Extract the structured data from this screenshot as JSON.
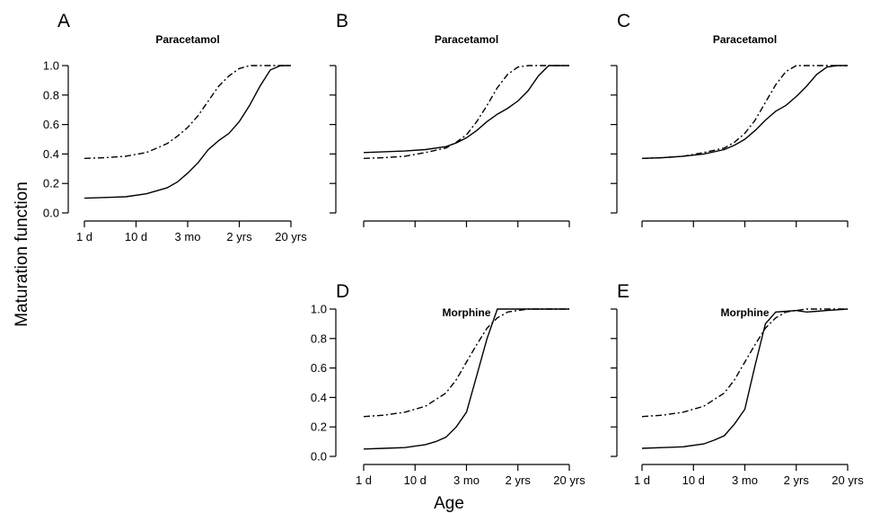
{
  "figure": {
    "ylabel": "Maturation function",
    "xlabel": "Age"
  },
  "chart_data": [
    {
      "type": "line",
      "panel": "A",
      "title": "Paracetamol",
      "x_tick_labels": [
        "1 d",
        "10 d",
        "3 mo",
        "2 yrs",
        "20 yrs"
      ],
      "x_scale": "log",
      "y_ticks": [
        "0.0",
        "0.2",
        "0.4",
        "0.6",
        "0.8",
        "1.0"
      ],
      "ylim": [
        0,
        1
      ],
      "series": [
        {
          "style": "solid",
          "x": [
            0,
            0.5,
            1,
            1.5,
            2,
            2.25,
            2.5,
            2.75,
            3,
            3.25,
            3.5,
            3.75,
            4,
            4.25,
            4.5,
            4.75,
            5
          ],
          "y": [
            0.1,
            0.105,
            0.11,
            0.13,
            0.17,
            0.21,
            0.27,
            0.34,
            0.43,
            0.49,
            0.54,
            0.62,
            0.73,
            0.86,
            0.97,
            1.0,
            1.0
          ]
        },
        {
          "style": "dashdot",
          "x": [
            0,
            0.5,
            1,
            1.5,
            2,
            2.25,
            2.5,
            2.75,
            3,
            3.25,
            3.5,
            3.75,
            4,
            4.25,
            4.5,
            5
          ],
          "y": [
            0.37,
            0.375,
            0.385,
            0.41,
            0.47,
            0.52,
            0.58,
            0.66,
            0.76,
            0.86,
            0.93,
            0.98,
            1.0,
            1.0,
            1.0,
            1.0
          ]
        }
      ]
    },
    {
      "type": "line",
      "panel": "B",
      "title": "Paracetamol",
      "x_tick_labels": [],
      "x_scale": "log",
      "y_ticks": [],
      "ylim": [
        0,
        1
      ],
      "series": [
        {
          "style": "solid",
          "x": [
            0,
            0.5,
            1,
            1.5,
            2,
            2.25,
            2.5,
            2.75,
            3,
            3.25,
            3.5,
            3.75,
            4,
            4.25,
            4.5,
            4.75,
            5
          ],
          "y": [
            0.41,
            0.415,
            0.42,
            0.43,
            0.45,
            0.475,
            0.51,
            0.56,
            0.62,
            0.67,
            0.71,
            0.76,
            0.83,
            0.93,
            1.0,
            1.0,
            1.0
          ]
        },
        {
          "style": "dashdot",
          "x": [
            0,
            0.5,
            1,
            1.5,
            2,
            2.25,
            2.5,
            2.75,
            3,
            3.25,
            3.5,
            3.75,
            4,
            4.25,
            4.5,
            5
          ],
          "y": [
            0.37,
            0.375,
            0.385,
            0.41,
            0.44,
            0.48,
            0.53,
            0.62,
            0.73,
            0.85,
            0.94,
            0.99,
            1.0,
            1.0,
            1.0,
            1.0
          ]
        }
      ]
    },
    {
      "type": "line",
      "panel": "C",
      "title": "Paracetamol",
      "x_tick_labels": [],
      "x_scale": "log",
      "y_ticks": [],
      "ylim": [
        0,
        1
      ],
      "series": [
        {
          "style": "solid",
          "x": [
            0,
            0.5,
            1,
            1.5,
            2,
            2.25,
            2.5,
            2.75,
            3,
            3.25,
            3.5,
            3.75,
            4,
            4.25,
            4.5,
            4.75,
            5
          ],
          "y": [
            0.37,
            0.375,
            0.385,
            0.4,
            0.43,
            0.46,
            0.5,
            0.56,
            0.63,
            0.69,
            0.73,
            0.79,
            0.86,
            0.94,
            0.99,
            1.0,
            1.0
          ]
        },
        {
          "style": "dashdot",
          "x": [
            0,
            0.5,
            1,
            1.5,
            2,
            2.25,
            2.5,
            2.75,
            3,
            3.25,
            3.5,
            3.75,
            4,
            4.25,
            4.5,
            5
          ],
          "y": [
            0.37,
            0.375,
            0.385,
            0.41,
            0.44,
            0.48,
            0.54,
            0.63,
            0.75,
            0.87,
            0.96,
            1.0,
            1.0,
            1.0,
            1.0,
            1.0
          ]
        }
      ]
    },
    {
      "type": "line",
      "panel": "D",
      "title": "Morphine",
      "x_tick_labels": [
        "1 d",
        "10 d",
        "3 mo",
        "2 yrs",
        "20 yrs"
      ],
      "x_scale": "log",
      "y_ticks": [
        "0.0",
        "0.2",
        "0.4",
        "0.6",
        "0.8",
        "1.0"
      ],
      "ylim": [
        0,
        1
      ],
      "series": [
        {
          "style": "solid",
          "x": [
            0,
            0.5,
            1,
            1.5,
            1.75,
            2,
            2.25,
            2.5,
            2.75,
            3,
            3.25,
            3.5,
            3.75,
            4,
            4.5,
            5
          ],
          "y": [
            0.05,
            0.055,
            0.06,
            0.08,
            0.1,
            0.13,
            0.2,
            0.3,
            0.55,
            0.8,
            1.0,
            1.0,
            1.0,
            1.0,
            1.0,
            1.0
          ]
        },
        {
          "style": "dashdot",
          "x": [
            0,
            0.5,
            1,
            1.5,
            2,
            2.25,
            2.5,
            2.75,
            3,
            3.25,
            3.5,
            3.75,
            4,
            4.5,
            5
          ],
          "y": [
            0.27,
            0.28,
            0.3,
            0.34,
            0.43,
            0.52,
            0.64,
            0.76,
            0.87,
            0.94,
            0.98,
            0.99,
            1.0,
            1.0,
            1.0
          ]
        }
      ]
    },
    {
      "type": "line",
      "panel": "E",
      "title": "Morphine",
      "x_tick_labels": [
        "1 d",
        "10 d",
        "3 mo",
        "2 yrs",
        "20 yrs"
      ],
      "x_scale": "log",
      "y_ticks": [],
      "ylim": [
        0,
        1
      ],
      "series": [
        {
          "style": "solid",
          "x": [
            0,
            0.5,
            1,
            1.5,
            1.75,
            2,
            2.25,
            2.5,
            2.75,
            3,
            3.25,
            3.5,
            3.75,
            4,
            4.25,
            4.5,
            5
          ],
          "y": [
            0.055,
            0.06,
            0.065,
            0.085,
            0.11,
            0.14,
            0.22,
            0.32,
            0.62,
            0.9,
            0.98,
            0.985,
            0.99,
            0.98,
            0.985,
            0.99,
            1.0
          ]
        },
        {
          "style": "dashdot",
          "x": [
            0,
            0.5,
            1,
            1.5,
            2,
            2.25,
            2.5,
            2.75,
            3,
            3.25,
            3.5,
            3.75,
            4,
            4.5,
            5
          ],
          "y": [
            0.27,
            0.28,
            0.3,
            0.34,
            0.43,
            0.52,
            0.64,
            0.76,
            0.87,
            0.94,
            0.98,
            0.99,
            1.0,
            1.0,
            1.0
          ]
        }
      ]
    }
  ]
}
